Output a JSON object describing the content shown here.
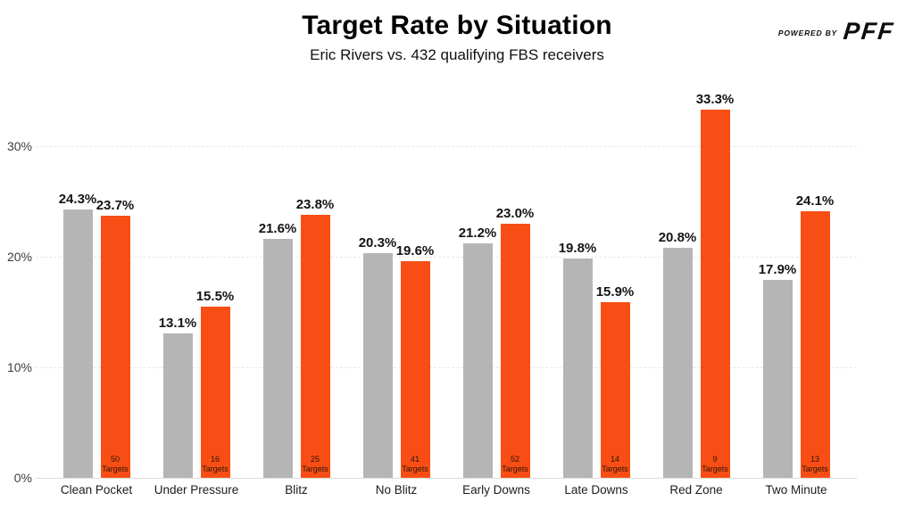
{
  "header": {
    "title": "Target Rate by Situation",
    "subtitle": "Eric Rivers vs. 432 qualifying FBS receivers",
    "powered_by_label": "POWERED BY",
    "brand_name": "PFF"
  },
  "colors": {
    "bar_gray": "#b5b5b5",
    "bar_orange": "#f84e15",
    "value_label_text": "#141414",
    "targets_text": "#2b1606",
    "gridline": "#e6e6e6",
    "baseline": "#dcdcdc",
    "axis_text": "#3d3d3d"
  },
  "chart_data": {
    "type": "bar",
    "title": "Target Rate by Situation",
    "subtitle": "Eric Rivers vs. 432 qualifying FBS receivers",
    "categories": [
      "Clean Pocket",
      "Under Pressure",
      "Blitz",
      "No Blitz",
      "Early Downs",
      "Late Downs",
      "Red Zone",
      "Two Minute"
    ],
    "series": [
      {
        "name": "gray",
        "color_key": "bar_gray",
        "values": [
          24.3,
          13.1,
          21.6,
          20.3,
          21.2,
          19.8,
          20.8,
          17.9
        ]
      },
      {
        "name": "orange",
        "color_key": "bar_orange",
        "values": [
          23.7,
          15.5,
          23.8,
          19.6,
          23.0,
          15.9,
          33.3,
          24.1
        ]
      }
    ],
    "value_labels": {
      "gray": [
        "24.3%",
        "13.1%",
        "21.6%",
        "20.3%",
        "21.2%",
        "19.8%",
        "20.8%",
        "17.9%"
      ],
      "orange": [
        "23.7%",
        "15.5%",
        "23.8%",
        "19.6%",
        "23.0%",
        "15.9%",
        "33.3%",
        "24.1%"
      ]
    },
    "target_counts": [
      50,
      16,
      25,
      41,
      52,
      14,
      9,
      13
    ],
    "targets_word": "Targets",
    "y_ticks": [
      {
        "value": 0,
        "label": "0%"
      },
      {
        "value": 10,
        "label": "10%"
      },
      {
        "value": 20,
        "label": "20%"
      },
      {
        "value": 30,
        "label": "30%"
      }
    ],
    "ylim": [
      0,
      35
    ],
    "grid": true,
    "legend": "none",
    "xlabel": "",
    "ylabel": ""
  }
}
